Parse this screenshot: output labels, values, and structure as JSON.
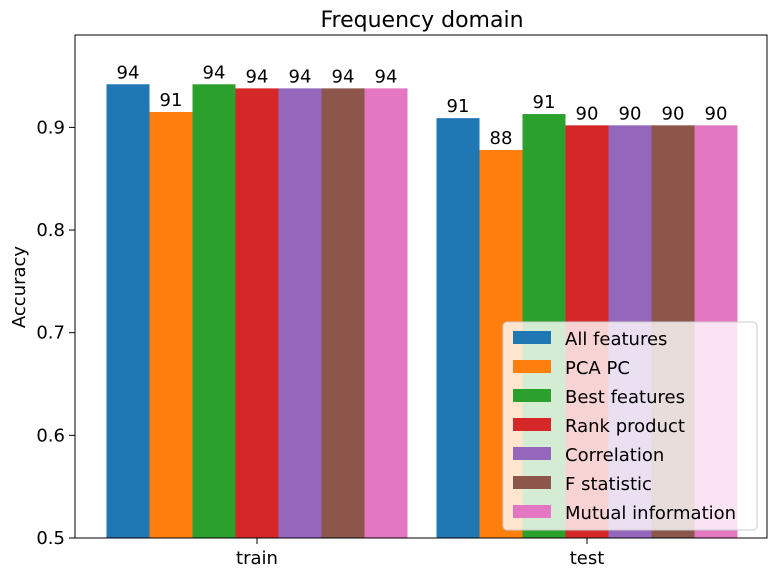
{
  "chart_data": {
    "type": "bar",
    "title": "Frequency domain",
    "xlabel": "",
    "ylabel": "Accuracy",
    "ylim": [
      0.5,
      0.99
    ],
    "yticks": [
      0.5,
      0.6,
      0.7,
      0.8,
      0.9
    ],
    "ytick_labels": [
      "0.5",
      "0.6",
      "0.7",
      "0.8",
      "0.9"
    ],
    "categories": [
      "train",
      "test"
    ],
    "legend_position": "bottom-right",
    "grid": false,
    "series": [
      {
        "name": "All features",
        "color": "#1f77b4",
        "values": [
          0.942,
          0.909
        ],
        "labels": [
          "94",
          "91"
        ]
      },
      {
        "name": "PCA PC",
        "color": "#ff7f0e",
        "values": [
          0.915,
          0.878
        ],
        "labels": [
          "91",
          "88"
        ]
      },
      {
        "name": "Best features",
        "color": "#2ca02c",
        "values": [
          0.942,
          0.913
        ],
        "labels": [
          "94",
          "91"
        ]
      },
      {
        "name": "Rank product",
        "color": "#d62728",
        "values": [
          0.938,
          0.902
        ],
        "labels": [
          "94",
          "90"
        ]
      },
      {
        "name": "Correlation",
        "color": "#9467bd",
        "values": [
          0.938,
          0.902
        ],
        "labels": [
          "94",
          "90"
        ]
      },
      {
        "name": "F statistic",
        "color": "#8c564b",
        "values": [
          0.938,
          0.902
        ],
        "labels": [
          "94",
          "90"
        ]
      },
      {
        "name": "Mutual information",
        "color": "#e377c2",
        "values": [
          0.938,
          0.902
        ],
        "labels": [
          "94",
          "90"
        ]
      }
    ]
  }
}
